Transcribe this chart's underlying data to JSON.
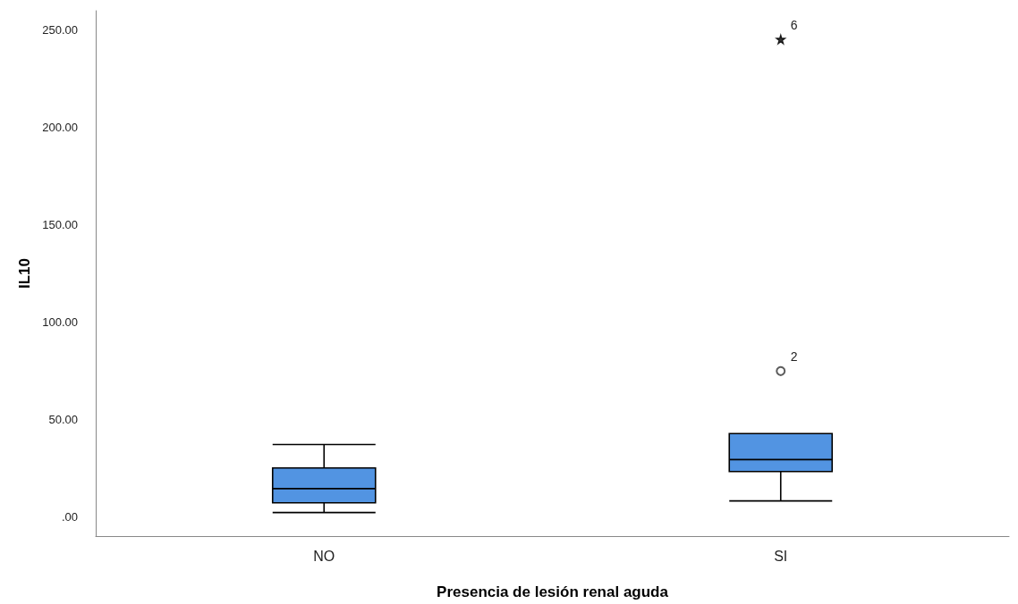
{
  "chart_data": {
    "type": "box",
    "xlabel": "Presencia de lesión renal aguda",
    "ylabel": "IL10",
    "categories": [
      "NO",
      "SI"
    ],
    "color": "#5294e2",
    "boxes": [
      {
        "low": 2.1,
        "q1": 7.1,
        "median": 14.4,
        "q3": 25.0,
        "high": 37.1
      },
      {
        "low": 8.1,
        "q1": 23.2,
        "median": 29.3,
        "q3": 42.7,
        "high": 42.7
      }
    ],
    "series": [
      {
        "type": "scatter",
        "x": [
          "SI"
        ],
        "values": [
          74.8
        ],
        "color": "#333333",
        "marker": "circle"
      },
      {
        "type": "scatter",
        "x": [
          "SI"
        ],
        "values": [
          245.3
        ],
        "color": "#000000",
        "marker": "star"
      }
    ],
    "annotations": [
      {
        "text": "2",
        "x": "SI",
        "y": 74.8
      },
      {
        "text": "6",
        "x": "SI",
        "y": 245.3
      }
    ],
    "ylim": [
      -10,
      260
    ],
    "yticks": [
      {
        "value": 0,
        "label": ".00"
      },
      {
        "value": 50,
        "label": "50.00"
      },
      {
        "value": 100,
        "label": "100.00"
      },
      {
        "value": 150,
        "label": "150.00"
      },
      {
        "value": 200,
        "label": "200.00"
      },
      {
        "value": 250,
        "label": "250.00"
      }
    ]
  }
}
